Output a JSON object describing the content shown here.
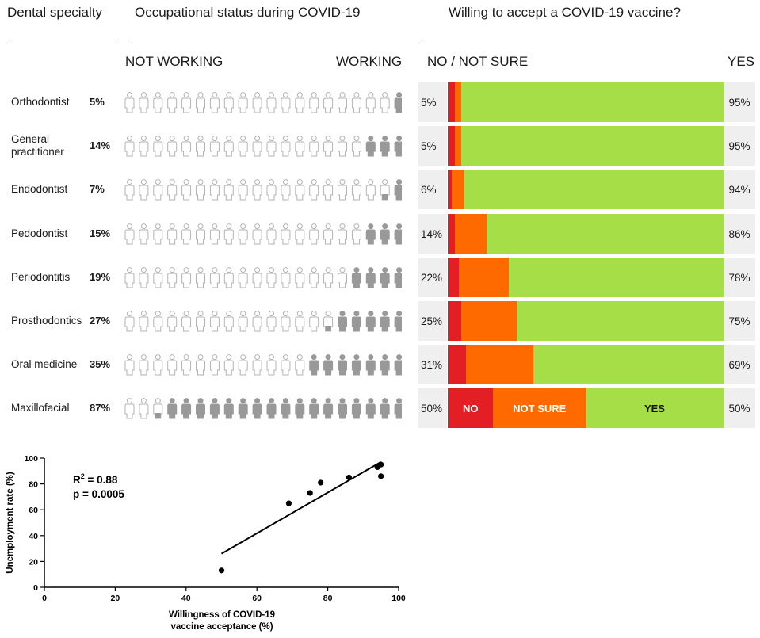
{
  "headers": {
    "specialty": "Dental specialty",
    "occupational": "Occupational status during COVID-19",
    "vaccine": "Willing to accept a COVID-19 vaccine?",
    "not_working": "NOT WORKING",
    "working": "WORKING",
    "no_not_sure": "NO / NOT SURE",
    "yes": "YES"
  },
  "colors": {
    "no": "#e31e24",
    "not_sure": "#ff6a00",
    "yes": "#a6de48",
    "working_icon": "#999999",
    "not_working_icon": "#b3b3b3"
  },
  "legend_labels": {
    "no": "NO",
    "not_sure": "NOT SURE",
    "yes": "YES"
  },
  "rows": [
    {
      "name_lines": [
        "Orthodontist"
      ],
      "unemployment_label": "5%",
      "working_count": 1,
      "no_not_sure_label": "5%",
      "yes_label": "95%",
      "no": 2.5,
      "not_sure": 2.5,
      "yes": 95
    },
    {
      "name_lines": [
        "General",
        "practitioner"
      ],
      "unemployment_label": "14%",
      "working_count": 3,
      "no_not_sure_label": "5%",
      "yes_label": "95%",
      "no": 2.5,
      "not_sure": 2.5,
      "yes": 95
    },
    {
      "name_lines": [
        "Endodontist"
      ],
      "unemployment_label": "7%",
      "working_count": 1.5,
      "no_not_sure_label": "6%",
      "yes_label": "94%",
      "no": 1.5,
      "not_sure": 4.5,
      "yes": 94
    },
    {
      "name_lines": [
        "Pedodontist"
      ],
      "unemployment_label": "15%",
      "working_count": 3,
      "no_not_sure_label": "14%",
      "yes_label": "86%",
      "no": 2.5,
      "not_sure": 11.5,
      "yes": 86
    },
    {
      "name_lines": [
        "Periodontitis"
      ],
      "unemployment_label": "19%",
      "working_count": 4,
      "no_not_sure_label": "22%",
      "yes_label": "78%",
      "no": 4,
      "not_sure": 18,
      "yes": 78
    },
    {
      "name_lines": [
        "Prosthodontics"
      ],
      "unemployment_label": "27%",
      "working_count": 5.5,
      "no_not_sure_label": "25%",
      "yes_label": "75%",
      "no": 5,
      "not_sure": 20,
      "yes": 75
    },
    {
      "name_lines": [
        "Oral medicine"
      ],
      "unemployment_label": "35%",
      "working_count": 7,
      "no_not_sure_label": "31%",
      "yes_label": "69%",
      "no": 6.5,
      "not_sure": 24.5,
      "yes": 69
    },
    {
      "name_lines": [
        "Maxillofacial"
      ],
      "unemployment_label": "87%",
      "working_count": 17.5,
      "no_not_sure_label": "50%",
      "yes_label": "50%",
      "no": 16.5,
      "not_sure": 33.5,
      "yes": 50
    }
  ],
  "chart_data": {
    "type": "scatter",
    "xlabel_lines": [
      "Willingness of COVID-19",
      "vaccine acceptance (%)"
    ],
    "ylabel": "Unemployment rate (%)",
    "xlim": [
      0,
      100
    ],
    "ylim": [
      0,
      100
    ],
    "xticks": [
      0,
      20,
      40,
      60,
      80,
      100
    ],
    "yticks": [
      0,
      20,
      40,
      60,
      80,
      100
    ],
    "points": [
      {
        "x": 50,
        "y": 13
      },
      {
        "x": 69,
        "y": 65
      },
      {
        "x": 75,
        "y": 73
      },
      {
        "x": 78,
        "y": 81
      },
      {
        "x": 86,
        "y": 85
      },
      {
        "x": 94,
        "y": 93
      },
      {
        "x": 95,
        "y": 95
      },
      {
        "x": 95,
        "y": 86
      }
    ],
    "regression": {
      "x1": 50,
      "y1": 26,
      "x2": 95,
      "y2": 97
    },
    "r2_label": "R",
    "r2_sup": "2",
    "r2_value": " = 0.88",
    "p_label": "p = 0.0005"
  }
}
